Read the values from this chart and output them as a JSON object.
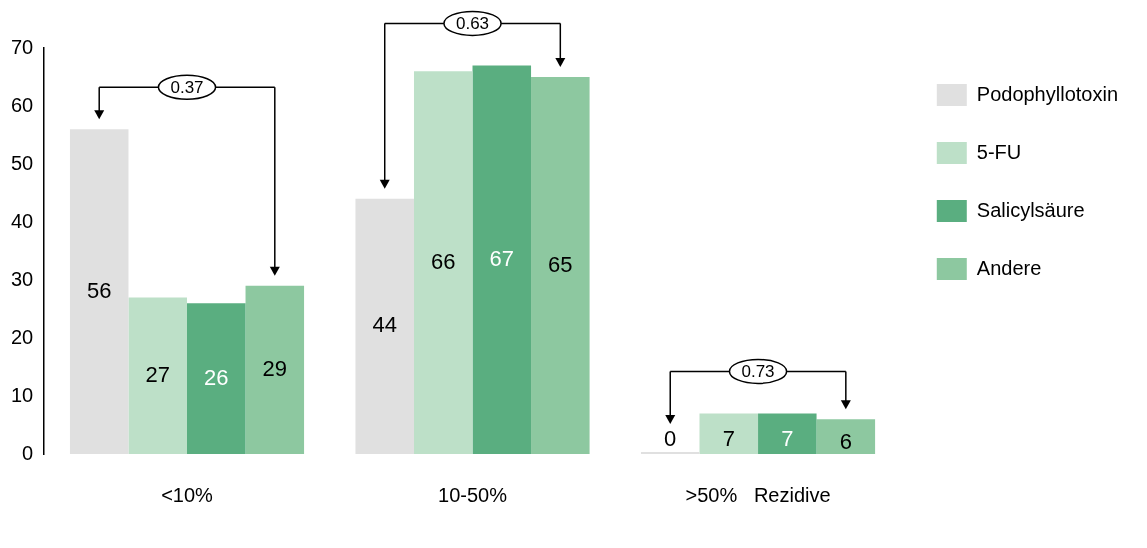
{
  "chart_data": {
    "type": "bar",
    "categories": [
      "<10%",
      "10-50%",
      ">50%   Rezidive"
    ],
    "series": [
      {
        "name": "Podophyllotoxin",
        "color": "#e0e0e0",
        "values": [
          56,
          44,
          0
        ]
      },
      {
        "name": "5-FU",
        "color": "#bde0c8",
        "values": [
          27,
          66,
          7
        ]
      },
      {
        "name": "Salicylsäure",
        "color": "#5aae80",
        "values": [
          26,
          67,
          7
        ]
      },
      {
        "name": "Andere",
        "color": "#8dc8a0",
        "values": [
          29,
          65,
          6
        ]
      }
    ],
    "ylim": [
      0,
      70
    ],
    "yticks": [
      0,
      10,
      20,
      30,
      40,
      50,
      60,
      70
    ],
    "grid": false,
    "legend": "top right",
    "data_labels": true,
    "annotations": [
      "0.37",
      "0.63",
      "0.73"
    ]
  }
}
